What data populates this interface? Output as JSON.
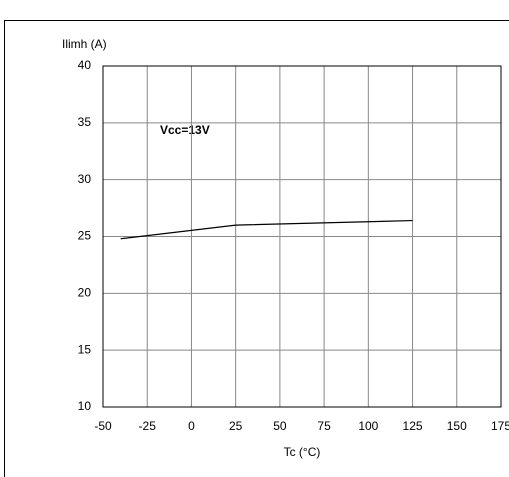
{
  "chart_data": {
    "type": "line",
    "ylabel": "Ilimh (A)",
    "xlabel": "Tc (°C)",
    "annotation": "Vcc=13V",
    "x": [
      -40,
      25,
      125
    ],
    "series": [
      {
        "name": "Vcc=13V",
        "color": "#000000",
        "values": [
          24.8,
          26.0,
          26.4
        ]
      }
    ],
    "xlim": [
      -50,
      175
    ],
    "xticks": [
      -50,
      -25,
      0,
      25,
      50,
      75,
      100,
      125,
      150,
      175
    ],
    "ylim": [
      10,
      40
    ],
    "yticks": [
      10,
      15,
      20,
      25,
      30,
      35,
      40
    ],
    "grid": true
  }
}
